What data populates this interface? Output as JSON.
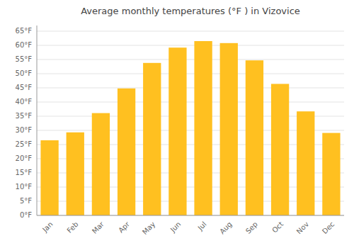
{
  "chart_data": {
    "type": "bar",
    "title": "Average monthly temperatures (°F ) in Vizovice",
    "categories": [
      "Jan",
      "Feb",
      "Mar",
      "Apr",
      "May",
      "Jun",
      "Jul",
      "Aug",
      "Sep",
      "Oct",
      "Nov",
      "Dec"
    ],
    "values": [
      26.5,
      29.3,
      36.1,
      44.8,
      53.8,
      59.2,
      61.5,
      60.8,
      54.7,
      46.4,
      36.7,
      29.1
    ],
    "color": "#FFC020",
    "ylim": [
      0,
      67
    ],
    "yticks": [
      {
        "value": 0,
        "label": "0°F"
      },
      {
        "value": 5,
        "label": "5°F"
      },
      {
        "value": 10,
        "label": "10°F"
      },
      {
        "value": 15,
        "label": "15°F"
      },
      {
        "value": 20,
        "label": "20°F"
      },
      {
        "value": 25,
        "label": "25°F"
      },
      {
        "value": 30,
        "label": "30°F"
      },
      {
        "value": 35,
        "label": "35°F"
      },
      {
        "value": 40,
        "label": "40°F"
      },
      {
        "value": 45,
        "label": "45°F"
      },
      {
        "value": 50,
        "label": "50°F"
      },
      {
        "value": 55,
        "label": "55°F"
      },
      {
        "value": 60,
        "label": "60°F"
      },
      {
        "value": 65,
        "label": "65°F"
      }
    ],
    "grid": true
  }
}
